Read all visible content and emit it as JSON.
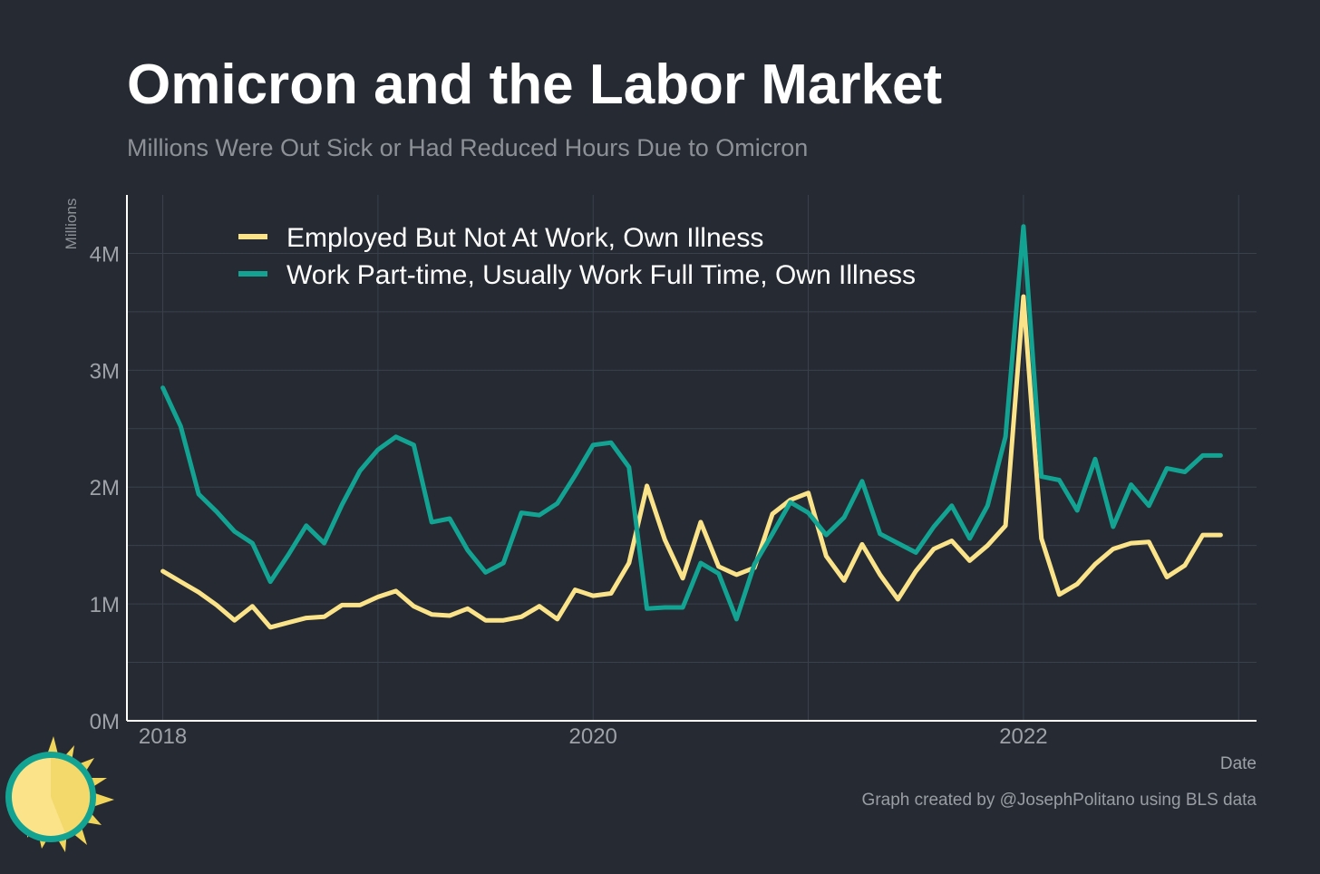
{
  "header": {
    "title": "Omicron and the Labor Market",
    "subtitle": "Millions Were Out Sick or Had Reduced Hours Due to Omicron"
  },
  "footer": {
    "caption": "Graph created by @JosephPolitano using BLS data"
  },
  "colors": {
    "background": "#252a33",
    "grid": "#3b414b",
    "axis": "#ffffff",
    "tick_text": "#9ea2a8",
    "legend_text": "#ffffff"
  },
  "chart_data": {
    "type": "line",
    "xlabel": "Date",
    "ylabel": "Millions",
    "xlim": [
      "2017-11",
      "2023-02"
    ],
    "ylim": [
      0,
      4.5
    ],
    "x_ticks": [
      "2018",
      "2020",
      "2022"
    ],
    "y_ticks": [
      "0M",
      "1M",
      "2M",
      "3M",
      "4M"
    ],
    "grid": true,
    "legend_position": "top-left",
    "x": [
      "2018-01",
      "2018-02",
      "2018-03",
      "2018-04",
      "2018-05",
      "2018-06",
      "2018-07",
      "2018-08",
      "2018-09",
      "2018-10",
      "2018-11",
      "2018-12",
      "2019-01",
      "2019-02",
      "2019-03",
      "2019-04",
      "2019-05",
      "2019-06",
      "2019-07",
      "2019-08",
      "2019-09",
      "2019-10",
      "2019-11",
      "2019-12",
      "2020-01",
      "2020-02",
      "2020-03",
      "2020-04",
      "2020-05",
      "2020-06",
      "2020-07",
      "2020-08",
      "2020-09",
      "2020-10",
      "2020-11",
      "2020-12",
      "2021-01",
      "2021-02",
      "2021-03",
      "2021-04",
      "2021-05",
      "2021-06",
      "2021-07",
      "2021-08",
      "2021-09",
      "2021-10",
      "2021-11",
      "2021-12",
      "2022-01",
      "2022-02",
      "2022-03",
      "2022-04",
      "2022-05",
      "2022-06",
      "2022-07",
      "2022-08",
      "2022-09",
      "2022-10",
      "2022-11",
      "2022-12"
    ],
    "series": [
      {
        "name": "Employed But Not At Work, Own Illness",
        "color": "#fbe38a",
        "values": [
          1.28,
          1.19,
          1.1,
          0.99,
          0.86,
          0.98,
          0.8,
          0.84,
          0.88,
          0.89,
          0.99,
          0.99,
          1.06,
          1.11,
          0.98,
          0.91,
          0.9,
          0.96,
          0.86,
          0.86,
          0.89,
          0.98,
          0.87,
          1.12,
          1.07,
          1.09,
          1.35,
          2.01,
          1.55,
          1.22,
          1.7,
          1.32,
          1.25,
          1.31,
          1.77,
          1.89,
          1.95,
          1.41,
          1.2,
          1.51,
          1.25,
          1.04,
          1.28,
          1.47,
          1.54,
          1.37,
          1.5,
          1.67,
          3.63,
          1.56,
          1.08,
          1.17,
          1.34,
          1.47,
          1.52,
          1.53,
          1.23,
          1.33,
          1.59,
          1.59
        ]
      },
      {
        "name": "Work Part-time, Usually Work Full Time, Own Illness",
        "color": "#13a393",
        "values": [
          2.85,
          2.52,
          1.94,
          1.79,
          1.62,
          1.52,
          1.19,
          1.42,
          1.67,
          1.52,
          1.85,
          2.14,
          2.32,
          2.43,
          2.36,
          1.7,
          1.73,
          1.46,
          1.27,
          1.35,
          1.78,
          1.76,
          1.86,
          2.1,
          2.36,
          2.38,
          2.17,
          0.96,
          0.97,
          0.97,
          1.35,
          1.26,
          0.87,
          1.34,
          1.6,
          1.87,
          1.78,
          1.59,
          1.74,
          2.05,
          1.6,
          1.52,
          1.44,
          1.66,
          1.84,
          1.56,
          1.84,
          2.43,
          4.23,
          2.09,
          2.06,
          1.8,
          2.24,
          1.66,
          2.02,
          1.84,
          2.16,
          2.13,
          2.27,
          2.27
        ]
      }
    ]
  },
  "logo": {
    "icon": "sun-icon"
  }
}
